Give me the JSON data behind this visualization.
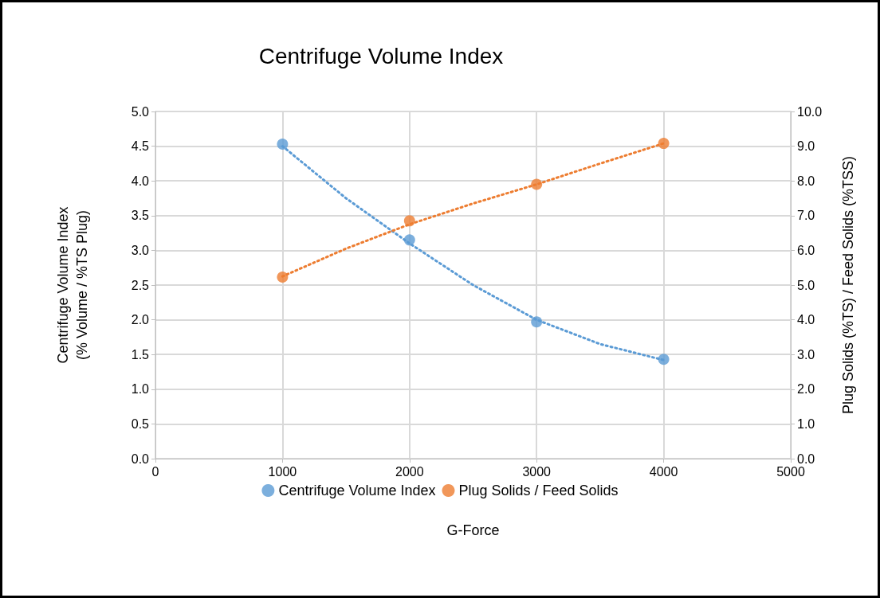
{
  "chart_data": {
    "type": "scatter",
    "title": "Centrifuge Volume Index",
    "xlabel": "G-Force",
    "ylabel": "Centrifuge Volume Index\n(% Volume / %TS Plug)",
    "y2label": "Plug Solids (%TS) / Feed Solids (%TSS)",
    "x": [
      1000,
      2000,
      3000,
      4000
    ],
    "series": [
      {
        "name": "Centrifuge Volume Index",
        "color": "#5b9bd5",
        "values": [
          4.53,
          3.15,
          1.97,
          1.43
        ],
        "marker": "circle"
      },
      {
        "name": "Plug Solids / Feed Solids",
        "color": "#ed7d31",
        "values": [
          5.23,
          6.85,
          7.9,
          9.08
        ],
        "axis": "y2",
        "marker": "circle"
      },
      {
        "type": "line",
        "color": "#5b9bd5",
        "x": [
          1000,
          1500,
          2000,
          2500,
          3000,
          3500,
          4000
        ],
        "values": [
          4.5,
          3.75,
          3.1,
          2.5,
          2.0,
          1.65,
          1.42
        ],
        "marker": "none",
        "line_style": "dotted"
      },
      {
        "type": "line",
        "color": "#ed7d31",
        "axis": "y2",
        "x": [
          1000,
          1500,
          2000,
          2500,
          3000,
          3500,
          4000
        ],
        "values": [
          5.25,
          6.05,
          6.75,
          7.35,
          7.9,
          8.5,
          9.08
        ],
        "marker": "none",
        "line_style": "dotted"
      }
    ],
    "xlim": [
      0,
      5000
    ],
    "xticks": [
      0,
      1000,
      2000,
      3000,
      4000,
      5000
    ],
    "ylim": [
      0,
      5
    ],
    "yticks": [
      {
        "value": 0,
        "label": "0.0"
      },
      {
        "value": 0.5,
        "label": "0.5"
      },
      {
        "value": 1,
        "label": "1.0"
      },
      {
        "value": 1.5,
        "label": "1.5"
      },
      {
        "value": 2,
        "label": "2.0"
      },
      {
        "value": 2.5,
        "label": "2.5"
      },
      {
        "value": 3,
        "label": "3.0"
      },
      {
        "value": 3.5,
        "label": "3.5"
      },
      {
        "value": 4,
        "label": "4.0"
      },
      {
        "value": 4.5,
        "label": "4.5"
      },
      {
        "value": 5,
        "label": "5.0"
      }
    ],
    "y2lim": [
      0,
      10
    ],
    "y2ticks": [
      {
        "value": 0,
        "label": "0.0"
      },
      {
        "value": 1,
        "label": "1.0"
      },
      {
        "value": 2,
        "label": "2.0"
      },
      {
        "value": 3,
        "label": "3.0"
      },
      {
        "value": 4,
        "label": "4.0"
      },
      {
        "value": 5,
        "label": "5.0"
      },
      {
        "value": 6,
        "label": "6.0"
      },
      {
        "value": 7,
        "label": "7.0"
      },
      {
        "value": 8,
        "label": "8.0"
      },
      {
        "value": 9,
        "label": "9.0"
      },
      {
        "value": 10,
        "label": "10.0"
      }
    ],
    "grid": true,
    "legend": "bottom"
  }
}
